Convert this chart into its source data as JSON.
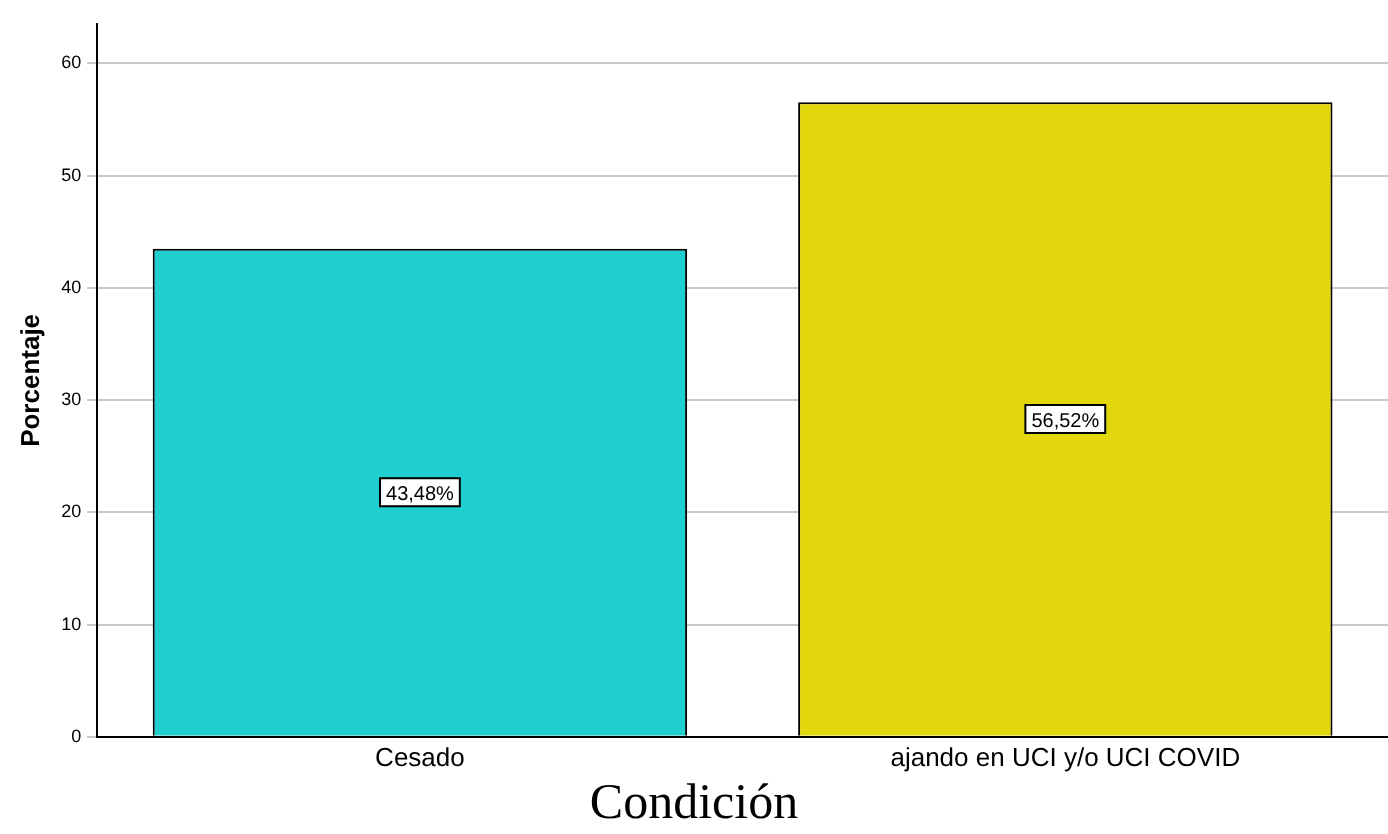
{
  "chart_data": {
    "type": "bar",
    "xlabel": "Condición",
    "ylabel": "Porcentaje",
    "categories": [
      "Cesado",
      "ajando en UCI y/o UCI COVID"
    ],
    "values": [
      43.48,
      56.52
    ],
    "colors": [
      "#1fcfcf",
      "#e2d70c"
    ],
    "value_labels": [
      "43,48%",
      "56,52%"
    ],
    "ylim": [
      0,
      63.5
    ],
    "yticks": [
      0,
      10,
      20,
      30,
      40,
      50,
      60
    ],
    "grid": "y",
    "legend": false
  }
}
